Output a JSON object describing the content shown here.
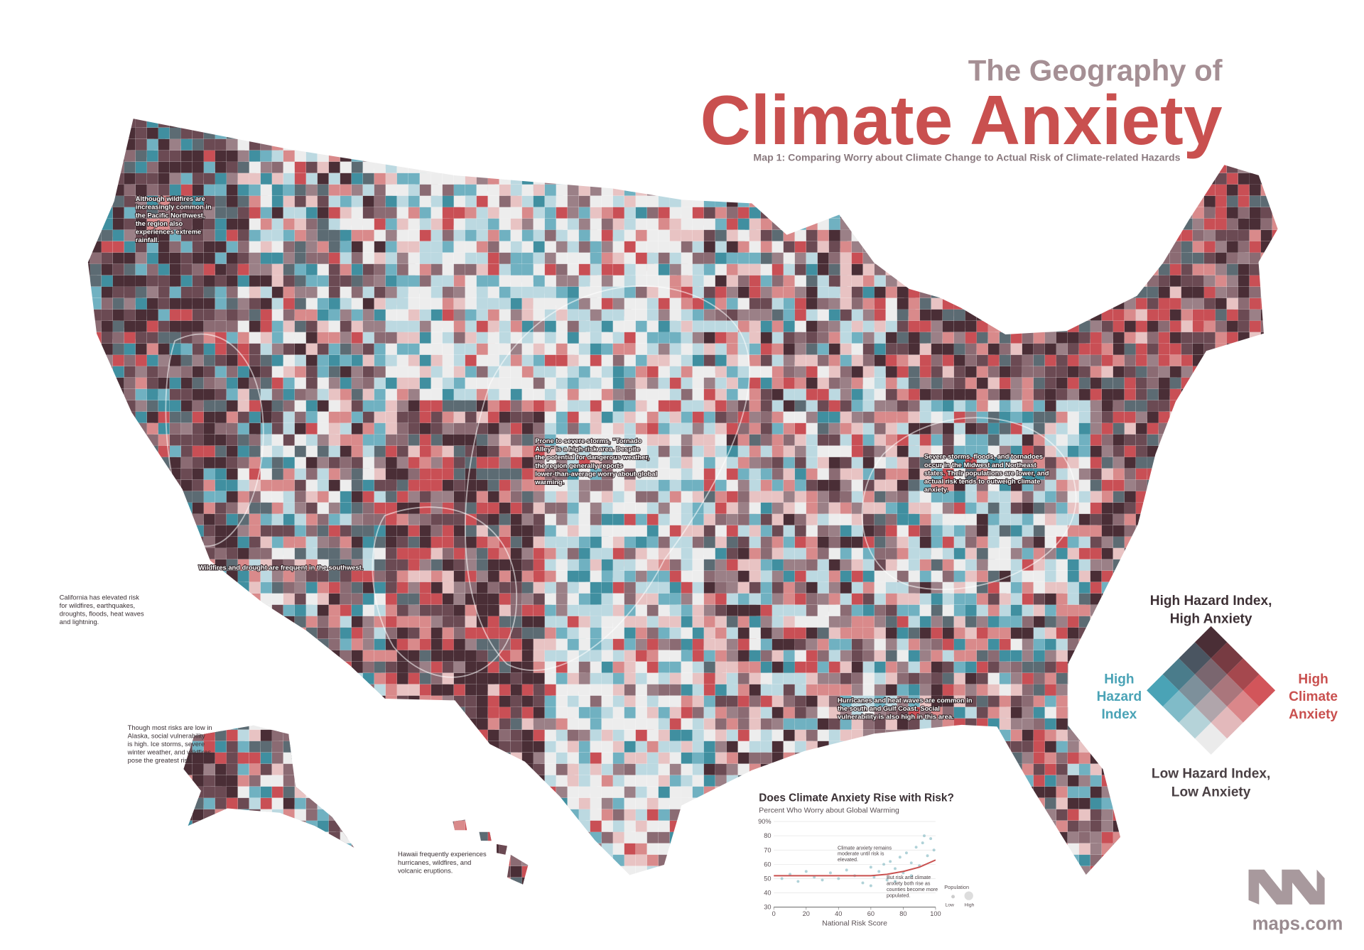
{
  "title": {
    "line1": "The Geography of",
    "line2": "Climate Anxiety",
    "subtitle": "Map 1: Comparing Worry about Climate Change to Actual Risk of Climate-related Hazards"
  },
  "annotations": [
    "Although wildfires are increasingly common in the Pacific Northwest, the region also experiences extreme rainfall.",
    "California has elevated risk for wildfires, earthquakes, droughts, floods, heat waves and lightning.",
    "Wildfires and drought are frequent in the southwest.",
    "Prone to severe storms, \"Tornado Alley\" is a high-risk area. Despite the potential for dangerous weather, the region generally reports lower-than-average worry about global warming.",
    "Severe storms, floods, and tornadoes occur in the Midwest and Northeast states. Their populations are lower, and actual risk tends to outweigh climate anxiety.",
    "Hurricanes and heat waves are common in the south and Gulf Coast. Social vulnerability is also high in this area.",
    "Though most risks are low in Alaska, social vulnerability is high. Ice storms, severe winter weather, and wildfires pose the greatest risk.",
    "Hawaii frequently experiences hurricanes, wildfires, and volcanic eruptions."
  ],
  "legend": {
    "top": [
      "High Hazard Index,",
      "High Anxiety"
    ],
    "left": [
      "High",
      "Hazard",
      "Index"
    ],
    "right": [
      "High",
      "Climate",
      "Anxiety"
    ],
    "bottom": [
      "Low Hazard Index,",
      "Low Anxiety"
    ],
    "colors": {
      "high_both": "#4a2e36",
      "high_hazard": "#4aa3b6",
      "high_anxiety": "#d2555a",
      "low_both": "#ebebeb"
    }
  },
  "chart_data": {
    "type": "scatter",
    "title": "Does Climate Anxiety Rise with Risk?",
    "subtitle": "Percent Who Worry about Global Warming",
    "x_label": "National Risk Score",
    "xlim": [
      0,
      100
    ],
    "ylim": [
      30,
      90
    ],
    "xticks": [
      0,
      20,
      40,
      60,
      80,
      100
    ],
    "yticks": [
      30,
      40,
      50,
      60,
      70,
      80,
      {
        "value": 90,
        "label": "90%"
      }
    ],
    "point_color": "#8fbfc8",
    "line_color": "#c9504f",
    "points": {
      "x": [
        5,
        10,
        15,
        20,
        25,
        30,
        35,
        40,
        45,
        50,
        55,
        60,
        62,
        65,
        68,
        70,
        72,
        75,
        78,
        80,
        82,
        85,
        88,
        90,
        92,
        95,
        97,
        99,
        60,
        75,
        85,
        93
      ],
      "y": [
        50,
        53,
        48,
        55,
        51,
        49,
        54,
        50,
        56,
        52,
        47,
        58,
        51,
        55,
        60,
        49,
        62,
        57,
        65,
        54,
        68,
        61,
        72,
        59,
        75,
        66,
        78,
        70,
        45,
        48,
        52,
        80
      ]
    },
    "trend": {
      "x": [
        0,
        20,
        40,
        60,
        70,
        80,
        90,
        100
      ],
      "y": [
        52,
        52,
        52,
        52,
        53,
        55,
        58,
        63
      ]
    },
    "annotations": [
      "Climate anxiety remains moderate until risk is elevated.",
      "But risk and climate anxiety both rise as counties become more populated."
    ],
    "size_legend": {
      "title": "Population",
      "low": "Low",
      "high": "High"
    }
  },
  "brand": "maps.com"
}
